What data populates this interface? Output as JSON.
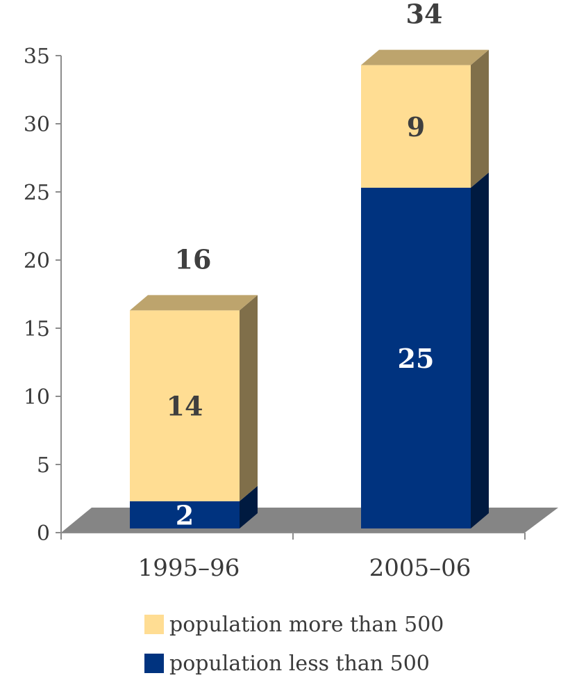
{
  "chart_data": {
    "type": "bar",
    "stacked": true,
    "categories": [
      "1995–96",
      "2005–06"
    ],
    "series": [
      {
        "name": "population less than 500",
        "values": [
          2,
          25
        ],
        "color": "#00337f",
        "label_color": "#ffffff"
      },
      {
        "name": "population more than 500",
        "values": [
          14,
          9
        ],
        "color": "#ffdd93",
        "label_color": "#3f3f3f"
      }
    ],
    "totals": [
      16,
      34
    ],
    "title": "",
    "xlabel": "",
    "ylabel": "",
    "ylim": [
      0,
      35
    ],
    "yticks": [
      0,
      5,
      10,
      15,
      20,
      25,
      30,
      35
    ],
    "legend_position": "bottom",
    "legend_order": [
      1,
      0
    ],
    "grid": false,
    "floor_color": "#858585"
  }
}
